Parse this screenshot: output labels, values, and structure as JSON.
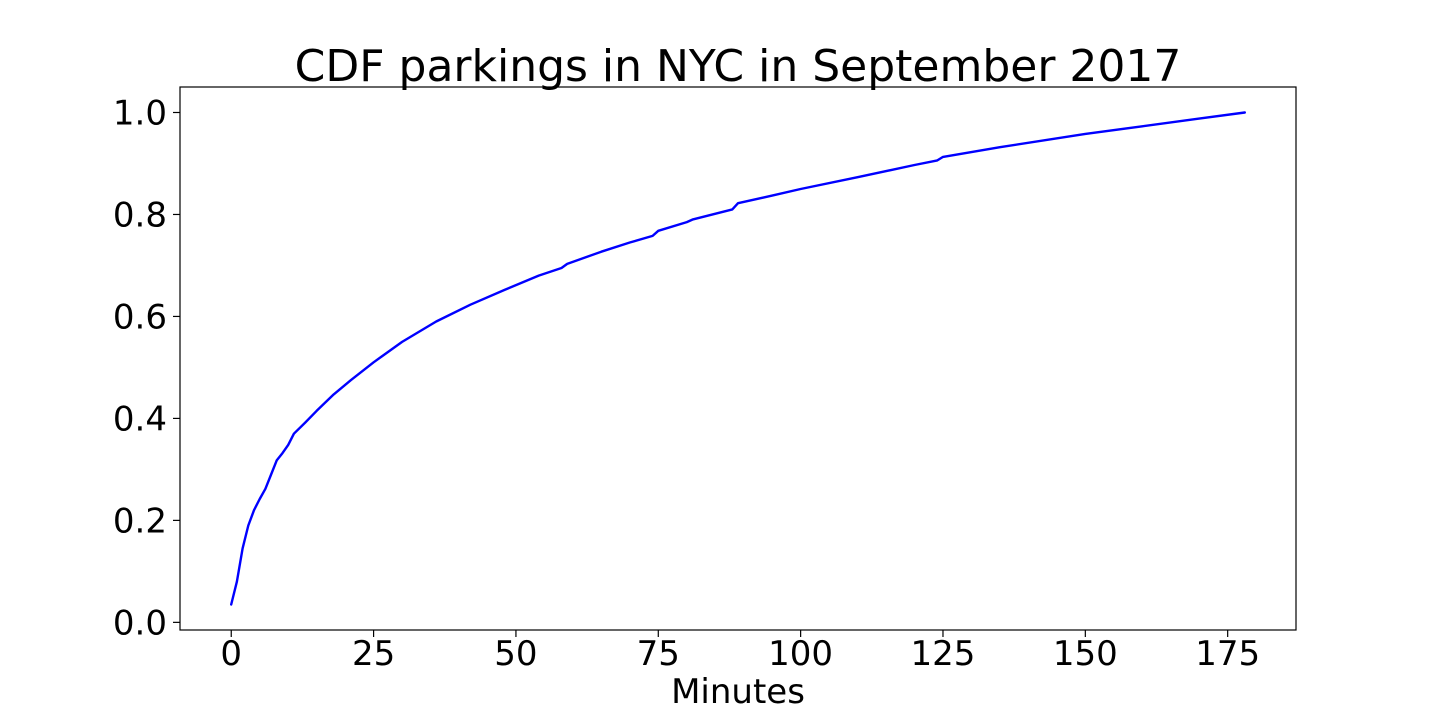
{
  "chart_data": {
    "type": "line",
    "title": "CDF parkings in NYC in September 2017",
    "xlabel": "Minutes",
    "ylabel": "",
    "xlim": [
      -9,
      187
    ],
    "ylim": [
      -0.015,
      1.05
    ],
    "xticks": [
      0,
      25,
      50,
      75,
      100,
      125,
      150,
      175
    ],
    "xtick_labels": [
      "0",
      "25",
      "50",
      "75",
      "100",
      "125",
      "150",
      "175"
    ],
    "yticks": [
      0.0,
      0.2,
      0.4,
      0.6,
      0.8,
      1.0
    ],
    "ytick_labels": [
      "0.0",
      "0.2",
      "0.4",
      "0.6",
      "0.8",
      "1.0"
    ],
    "grid": false,
    "series": [
      {
        "color": "#0000ff",
        "x": [
          0,
          1,
          2,
          3,
          4,
          5,
          6,
          7,
          8,
          9,
          10,
          11,
          13,
          15,
          18,
          21,
          25,
          30,
          36,
          42,
          48,
          54,
          58,
          59,
          65,
          70,
          74,
          75,
          80,
          81,
          88,
          89,
          95,
          100,
          110,
          120,
          124,
          125,
          135,
          150,
          160,
          170,
          178
        ],
        "y": [
          0.035,
          0.08,
          0.145,
          0.19,
          0.22,
          0.242,
          0.262,
          0.29,
          0.318,
          0.332,
          0.348,
          0.37,
          0.392,
          0.415,
          0.447,
          0.475,
          0.51,
          0.55,
          0.59,
          0.623,
          0.652,
          0.68,
          0.695,
          0.703,
          0.727,
          0.745,
          0.758,
          0.768,
          0.785,
          0.79,
          0.81,
          0.822,
          0.837,
          0.85,
          0.873,
          0.897,
          0.906,
          0.913,
          0.932,
          0.958,
          0.973,
          0.988,
          1.0
        ]
      }
    ]
  }
}
